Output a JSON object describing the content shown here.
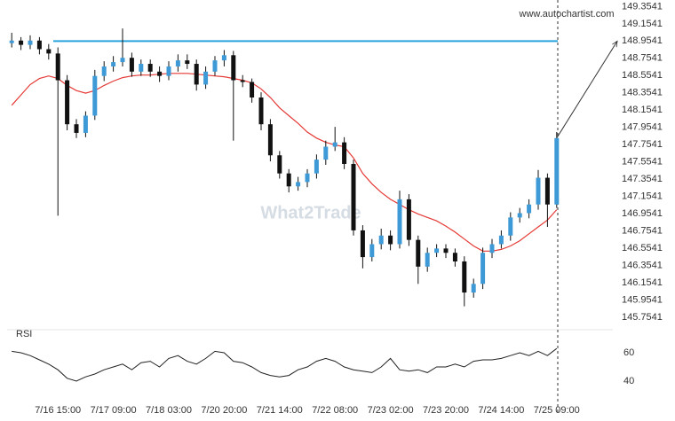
{
  "chart_data": [
    {
      "type": "candlestick",
      "source": "www.autochartist.com",
      "watermark": "What2Trade",
      "categories": [
        null,
        null,
        null,
        null,
        null,
        "7/16 15:00",
        null,
        null,
        null,
        null,
        null,
        "7/17 09:00",
        null,
        null,
        null,
        null,
        null,
        "7/18 03:00",
        null,
        null,
        null,
        null,
        null,
        "7/20 20:00",
        null,
        null,
        null,
        null,
        null,
        "7/21 14:00",
        null,
        null,
        null,
        null,
        null,
        "7/22 08:00",
        null,
        null,
        null,
        null,
        null,
        "7/23 02:00",
        null,
        null,
        null,
        null,
        null,
        "7/23 20:00",
        null,
        null,
        null,
        null,
        null,
        "7/24 14:00",
        null,
        null,
        null,
        null,
        null,
        "7/25 09:00"
      ],
      "open": [
        148.93,
        148.96,
        148.91,
        148.96,
        148.86,
        148.81,
        148.5,
        147.99,
        147.89,
        148.09,
        148.55,
        148.66,
        148.71,
        148.76,
        148.6,
        148.69,
        148.6,
        148.55,
        148.66,
        148.73,
        148.69,
        148.45,
        148.6,
        148.73,
        148.79,
        148.5,
        148.48,
        148.3,
        147.99,
        147.63,
        147.42,
        147.27,
        147.32,
        147.42,
        147.58,
        147.73,
        147.78,
        147.53,
        146.76,
        146.45,
        146.6,
        146.7,
        146.6,
        147.12,
        146.65,
        146.34,
        146.5,
        146.55,
        146.5,
        146.4,
        146.04,
        146.14,
        146.5,
        146.6,
        146.7,
        146.91,
        146.96,
        147.06,
        147.37,
        147.06
      ],
      "high": [
        149.05,
        149.0,
        149.02,
        149.0,
        148.92,
        148.88,
        148.56,
        148.05,
        148.14,
        148.62,
        148.72,
        148.78,
        149.1,
        148.82,
        148.74,
        148.74,
        148.66,
        148.72,
        148.8,
        148.8,
        148.74,
        148.66,
        148.78,
        148.85,
        148.84,
        148.56,
        148.52,
        148.36,
        148.05,
        147.68,
        147.47,
        147.38,
        147.47,
        147.64,
        147.8,
        147.96,
        147.84,
        147.58,
        146.82,
        146.66,
        146.78,
        146.76,
        147.22,
        147.18,
        146.7,
        146.56,
        146.6,
        146.6,
        146.55,
        146.46,
        146.2,
        146.56,
        146.66,
        146.76,
        146.97,
        147.02,
        147.12,
        147.46,
        147.42,
        147.9
      ],
      "low": [
        148.88,
        148.85,
        148.86,
        148.8,
        148.74,
        146.93,
        147.92,
        147.83,
        147.84,
        148.04,
        148.49,
        148.6,
        148.66,
        148.54,
        148.55,
        148.54,
        148.48,
        148.5,
        148.6,
        148.63,
        148.38,
        148.4,
        148.55,
        148.66,
        147.8,
        148.42,
        148.24,
        147.92,
        147.56,
        147.36,
        147.2,
        147.22,
        147.26,
        147.36,
        147.52,
        147.68,
        147.47,
        146.7,
        146.32,
        146.4,
        146.54,
        146.53,
        146.55,
        146.58,
        146.14,
        146.28,
        146.45,
        146.44,
        146.34,
        145.88,
        145.98,
        146.08,
        146.44,
        146.55,
        146.64,
        146.85,
        146.9,
        147.0,
        146.8,
        147.02
      ],
      "close": [
        148.96,
        148.91,
        148.96,
        148.86,
        148.81,
        148.5,
        147.99,
        147.89,
        148.09,
        148.55,
        148.66,
        148.71,
        148.76,
        148.6,
        148.69,
        148.6,
        148.55,
        148.66,
        148.73,
        148.69,
        148.45,
        148.6,
        148.73,
        148.79,
        148.5,
        148.48,
        148.3,
        147.99,
        147.63,
        147.42,
        147.27,
        147.32,
        147.42,
        147.58,
        147.73,
        147.78,
        147.53,
        146.76,
        146.45,
        146.6,
        146.7,
        146.6,
        147.12,
        146.65,
        146.34,
        146.5,
        146.55,
        146.5,
        146.4,
        146.04,
        146.14,
        146.5,
        146.6,
        146.7,
        146.91,
        146.96,
        147.06,
        147.37,
        147.06,
        147.83
      ],
      "up_color": "#3d9ad6",
      "down_color": "#111111",
      "series": [
        {
          "color": "#e53935",
          "values": [
            148.21,
            148.33,
            148.45,
            148.52,
            148.55,
            148.52,
            148.44,
            148.38,
            148.35,
            148.38,
            148.44,
            148.49,
            148.53,
            148.55,
            148.56,
            148.56,
            148.57,
            148.58,
            148.58,
            148.58,
            148.57,
            148.56,
            148.55,
            148.54,
            148.52,
            148.5,
            148.47,
            148.4,
            148.3,
            148.18,
            148.09,
            148.0,
            147.9,
            147.83,
            147.78,
            147.75,
            147.73,
            147.6,
            147.42,
            147.3,
            147.2,
            147.12,
            147.06,
            147.0,
            146.95,
            146.91,
            146.87,
            146.81,
            146.74,
            146.66,
            146.58,
            146.52,
            146.52,
            146.54,
            146.58,
            146.64,
            146.72,
            146.8,
            146.88,
            147.0
          ]
        }
      ],
      "level": {
        "value": 148.9541,
        "color": "#29a3dd"
      },
      "ylim": [
        145.65,
        149.43
      ],
      "yticks": [
        149.3541,
        149.1541,
        148.9541,
        148.7541,
        148.5541,
        148.3541,
        148.1541,
        147.9541,
        147.7541,
        147.5541,
        147.3541,
        147.1541,
        146.9541,
        146.7541,
        146.5541,
        146.3541,
        146.1541,
        145.9541,
        145.7541
      ]
    },
    {
      "type": "line",
      "title": "RSI",
      "color": "#222222",
      "values": [
        61,
        60,
        58,
        55,
        52,
        48,
        42,
        40,
        43,
        45,
        48,
        50,
        52,
        48,
        53,
        54,
        50,
        56,
        58,
        54,
        52,
        56,
        61,
        60,
        54,
        53,
        50,
        46,
        44,
        43,
        44,
        48,
        50,
        54,
        56,
        54,
        50,
        48,
        47,
        46,
        50,
        56,
        48,
        47,
        48,
        46,
        50,
        50,
        52,
        50,
        54,
        55,
        55,
        56,
        58,
        60,
        58,
        61,
        58,
        63
      ],
      "ylim": [
        25,
        70
      ],
      "yticks": [
        60,
        40
      ]
    }
  ]
}
